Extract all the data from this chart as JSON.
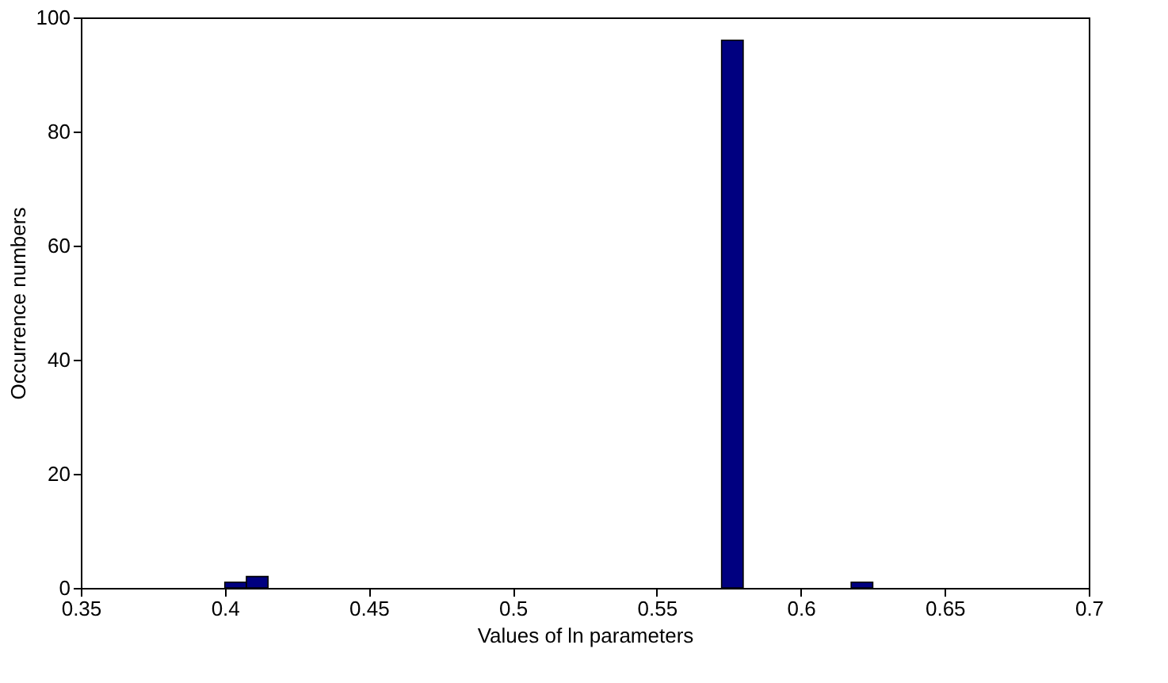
{
  "chart_data": {
    "type": "histogram",
    "xlabel": "Values of ln parameters",
    "ylabel": "Occurrence numbers",
    "bins": [
      0.4,
      0.4075,
      0.415,
      0.4225,
      0.43,
      0.4375,
      0.445,
      0.4525,
      0.46,
      0.4675,
      0.475,
      0.4825,
      0.49,
      0.4975,
      0.505,
      0.5125,
      0.52,
      0.5275,
      0.535,
      0.5425,
      0.55,
      0.5575,
      0.565,
      0.5725,
      0.58,
      0.5875,
      0.595,
      0.6025,
      0.61,
      0.6175,
      0.625
    ],
    "values": [
      1,
      2,
      0,
      0,
      0,
      0,
      0,
      0,
      0,
      0,
      0,
      0,
      0,
      0,
      0,
      0,
      0,
      0,
      0,
      0,
      0,
      0,
      0,
      96,
      0,
      0,
      0,
      0,
      0,
      1
    ],
    "color": "#000080",
    "xlim": [
      0.35,
      0.7
    ],
    "xticks": [
      0.35,
      0.4,
      0.45,
      0.5,
      0.55,
      0.6,
      0.65,
      0.7
    ],
    "ylim": [
      0,
      100
    ],
    "yticks": [
      0,
      20,
      40,
      60,
      80,
      100
    ],
    "grid": false
  }
}
